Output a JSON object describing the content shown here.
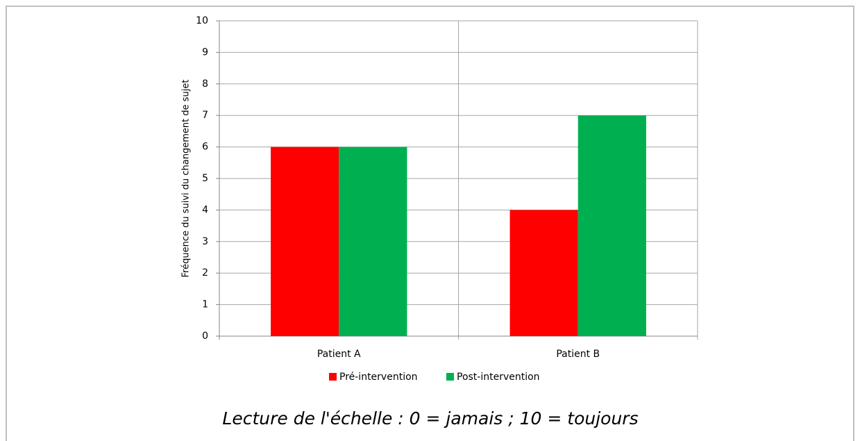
{
  "chart_data": {
    "type": "bar",
    "y_label": "Fréquence du suivi du changement de sujet",
    "categories": [
      "Patient A",
      "Patient B"
    ],
    "series": [
      {
        "name": "Pré-intervention",
        "color": "#ff0000",
        "values": [
          6,
          4
        ]
      },
      {
        "name": "Post-intervention",
        "color": "#00b050",
        "values": [
          6,
          7
        ]
      }
    ],
    "ylim": [
      0,
      10
    ],
    "yticks": [
      0,
      1,
      2,
      3,
      4,
      5,
      6,
      7,
      8,
      9,
      10
    ],
    "grid": true,
    "legend": "bottom",
    "caption": "Lecture de l'échelle : 0 = jamais ; 10 = toujours"
  }
}
